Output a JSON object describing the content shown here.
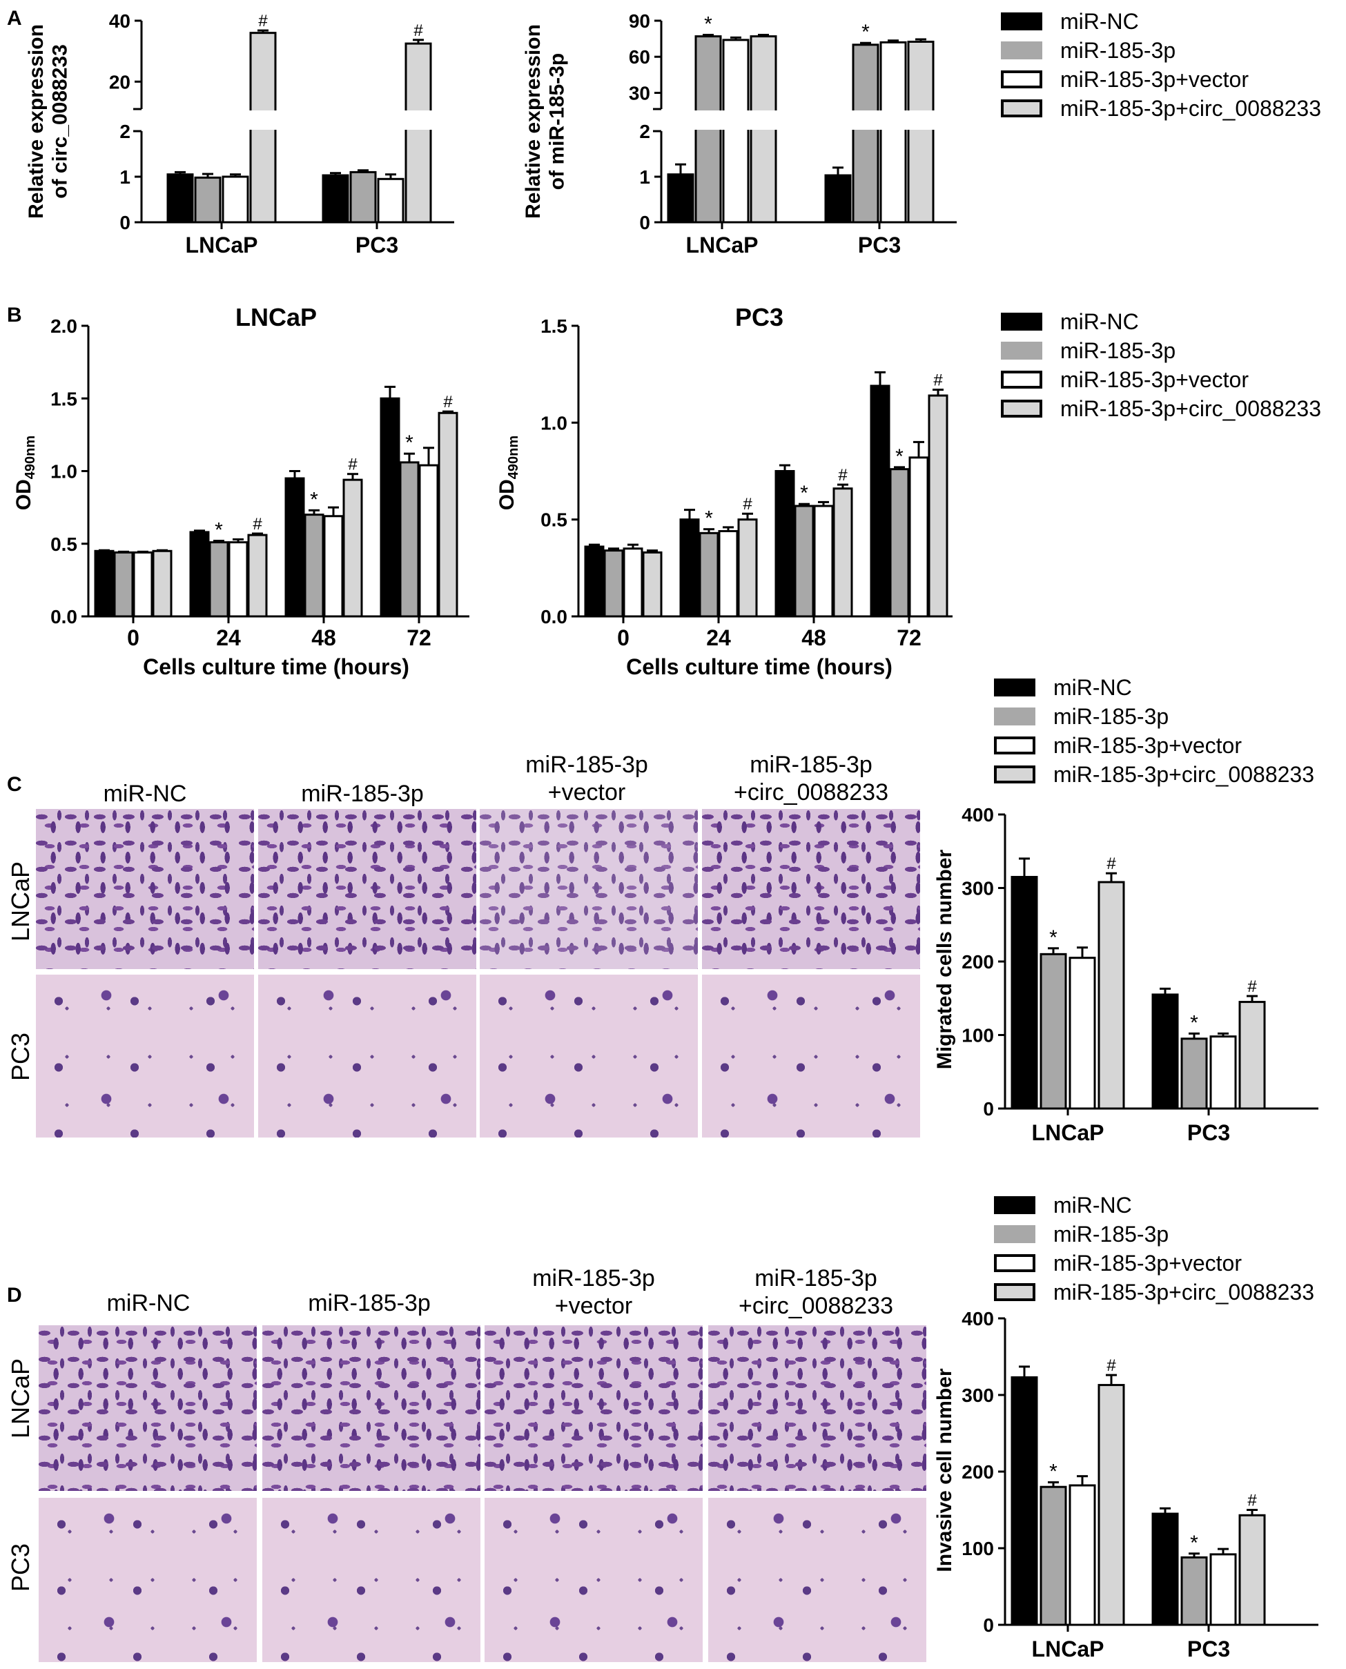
{
  "panels": {
    "a": "A",
    "b": "B",
    "c": "C",
    "d": "D"
  },
  "legend": {
    "items": [
      "miR-NC",
      "miR-185-3p",
      "miR-185-3p+vector",
      "miR-185-3p+circ_0088233"
    ],
    "colors": [
      "#000000",
      "#a8a8a8",
      "#ffffff",
      "#d6d6d6"
    ]
  },
  "images": {
    "columns_c": [
      [
        "miR-NC"
      ],
      [
        "miR-185-3p"
      ],
      [
        "miR-185-3p",
        "+vector"
      ],
      [
        "miR-185-3p",
        "+circ_0088233"
      ]
    ],
    "columns_d": [
      [
        "miR-NC"
      ],
      [
        "miR-185-3p"
      ],
      [
        "miR-185-3p",
        "+vector"
      ],
      [
        "miR-185-3p",
        "+circ_0088233"
      ]
    ],
    "rows": [
      "LNCaP",
      "PC3"
    ]
  },
  "chart_data": [
    {
      "id": "A1",
      "type": "bar",
      "ylabel": "Relative expression of circ_0088233",
      "categories": [
        "LNCaP",
        "PC3"
      ],
      "broken_axis": {
        "lower": [
          0,
          2
        ],
        "upper": [
          0,
          40
        ],
        "lower_ticks": [
          0,
          1,
          2
        ],
        "upper_ticks": [
          20,
          40
        ]
      },
      "series": [
        {
          "name": "miR-NC",
          "values": [
            1.05,
            1.03
          ],
          "errors": [
            0.05,
            0.05
          ]
        },
        {
          "name": "miR-185-3p",
          "values": [
            0.98,
            1.1
          ],
          "errors": [
            0.08,
            0.04
          ]
        },
        {
          "name": "miR-185-3p+vector",
          "values": [
            1.0,
            0.95
          ],
          "errors": [
            0.05,
            0.1
          ]
        },
        {
          "name": "miR-185-3p+circ_0088233",
          "values": [
            36,
            32.5
          ],
          "errors": [
            0.8,
            1.2
          ]
        }
      ],
      "annotations": [
        [
          "",
          "",
          "",
          "#"
        ],
        [
          "",
          "",
          "",
          "#"
        ]
      ]
    },
    {
      "id": "A2",
      "type": "bar",
      "ylabel": "Relative expression of miR-185-3p",
      "categories": [
        "LNCaP",
        "PC3"
      ],
      "broken_axis": {
        "lower": [
          0,
          2
        ],
        "upper": [
          0,
          90
        ],
        "lower_ticks": [
          0,
          1,
          2
        ],
        "upper_ticks": [
          30,
          60,
          90
        ]
      },
      "series": [
        {
          "name": "miR-NC",
          "values": [
            1.05,
            1.03
          ],
          "errors": [
            0.22,
            0.17
          ]
        },
        {
          "name": "miR-185-3p",
          "values": [
            77,
            70
          ],
          "errors": [
            1.2,
            1.5
          ]
        },
        {
          "name": "miR-185-3p+vector",
          "values": [
            74,
            72
          ],
          "errors": [
            2,
            1.5
          ]
        },
        {
          "name": "miR-185-3p+circ_0088233",
          "values": [
            77,
            72.5
          ],
          "errors": [
            1.2,
            2
          ]
        }
      ],
      "annotations": [
        [
          "",
          "*",
          "",
          ""
        ],
        [
          "",
          "*",
          "",
          ""
        ]
      ]
    },
    {
      "id": "B1",
      "type": "bar",
      "title": "LNCaP",
      "ylabel": "OD",
      "ylabel_sub": "490nm",
      "xlabel": "Cells culture time (hours)",
      "categories": [
        "0",
        "24",
        "48",
        "72"
      ],
      "ylim": [
        0,
        2.0
      ],
      "yticks": [
        "0.0",
        "0.5",
        "1.0",
        "1.5",
        "2.0"
      ],
      "series": [
        {
          "name": "miR-NC",
          "values": [
            0.45,
            0.58,
            0.95,
            1.5
          ],
          "errors": [
            0.005,
            0.01,
            0.05,
            0.08
          ]
        },
        {
          "name": "miR-185-3p",
          "values": [
            0.44,
            0.51,
            0.7,
            1.06
          ],
          "errors": [
            0.005,
            0.01,
            0.03,
            0.06
          ]
        },
        {
          "name": "miR-185-3p+vector",
          "values": [
            0.44,
            0.51,
            0.69,
            1.04
          ],
          "errors": [
            0.005,
            0.02,
            0.06,
            0.12
          ]
        },
        {
          "name": "miR-185-3p+circ_0088233",
          "values": [
            0.45,
            0.56,
            0.94,
            1.4
          ],
          "errors": [
            0.005,
            0.01,
            0.04,
            0.01
          ]
        }
      ],
      "annotations": [
        [
          "",
          "",
          "",
          ""
        ],
        [
          "",
          "*",
          "",
          "#"
        ],
        [
          "",
          "*",
          "",
          "#"
        ],
        [
          "",
          "*",
          "",
          "#"
        ]
      ]
    },
    {
      "id": "B2",
      "type": "bar",
      "title": "PC3",
      "ylabel": "OD",
      "ylabel_sub": "490nm",
      "xlabel": "Cells culture time (hours)",
      "categories": [
        "0",
        "24",
        "48",
        "72"
      ],
      "ylim": [
        0,
        1.5
      ],
      "yticks": [
        "0.0",
        "0.5",
        "1.0",
        "1.5"
      ],
      "series": [
        {
          "name": "miR-NC",
          "values": [
            0.36,
            0.5,
            0.75,
            1.19
          ],
          "errors": [
            0.01,
            0.05,
            0.03,
            0.07
          ]
        },
        {
          "name": "miR-185-3p",
          "values": [
            0.34,
            0.43,
            0.57,
            0.76
          ],
          "errors": [
            0.01,
            0.02,
            0.01,
            0.01
          ]
        },
        {
          "name": "miR-185-3p+vector",
          "values": [
            0.35,
            0.44,
            0.57,
            0.82
          ],
          "errors": [
            0.02,
            0.02,
            0.02,
            0.08
          ]
        },
        {
          "name": "miR-185-3p+circ_0088233",
          "values": [
            0.33,
            0.5,
            0.66,
            1.14
          ],
          "errors": [
            0.01,
            0.03,
            0.02,
            0.03
          ]
        }
      ],
      "annotations": [
        [
          "",
          "",
          "",
          ""
        ],
        [
          "",
          "*",
          "",
          "#"
        ],
        [
          "",
          "*",
          "",
          "#"
        ],
        [
          "",
          "*",
          "",
          "#"
        ]
      ]
    },
    {
      "id": "C",
      "type": "bar",
      "ylabel": "Migrated cells number",
      "categories": [
        "LNCaP",
        "PC3"
      ],
      "ylim": [
        0,
        400
      ],
      "yticks": [
        "0",
        "100",
        "200",
        "300",
        "400"
      ],
      "series": [
        {
          "name": "miR-NC",
          "values": [
            315,
            155
          ],
          "errors": [
            25,
            8
          ]
        },
        {
          "name": "miR-185-3p",
          "values": [
            210,
            95
          ],
          "errors": [
            8,
            7
          ]
        },
        {
          "name": "miR-185-3p+vector",
          "values": [
            205,
            98
          ],
          "errors": [
            14,
            4
          ]
        },
        {
          "name": "miR-185-3p+circ_0088233",
          "values": [
            308,
            145
          ],
          "errors": [
            12,
            8
          ]
        }
      ],
      "annotations": [
        [
          "",
          "*",
          "",
          "#"
        ],
        [
          "",
          "*",
          "",
          "#"
        ]
      ]
    },
    {
      "id": "D",
      "type": "bar",
      "ylabel": "Invasive cell number",
      "categories": [
        "LNCaP",
        "PC3"
      ],
      "ylim": [
        0,
        400
      ],
      "yticks": [
        "0",
        "100",
        "200",
        "300",
        "400"
      ],
      "series": [
        {
          "name": "miR-NC",
          "values": [
            323,
            145
          ],
          "errors": [
            14,
            7
          ]
        },
        {
          "name": "miR-185-3p",
          "values": [
            180,
            88
          ],
          "errors": [
            6,
            5
          ]
        },
        {
          "name": "miR-185-3p+vector",
          "values": [
            182,
            92
          ],
          "errors": [
            12,
            7
          ]
        },
        {
          "name": "miR-185-3p+circ_0088233",
          "values": [
            313,
            143
          ],
          "errors": [
            13,
            7
          ]
        }
      ],
      "annotations": [
        [
          "",
          "*",
          "",
          "#"
        ],
        [
          "",
          "*",
          "",
          "#"
        ]
      ]
    }
  ]
}
